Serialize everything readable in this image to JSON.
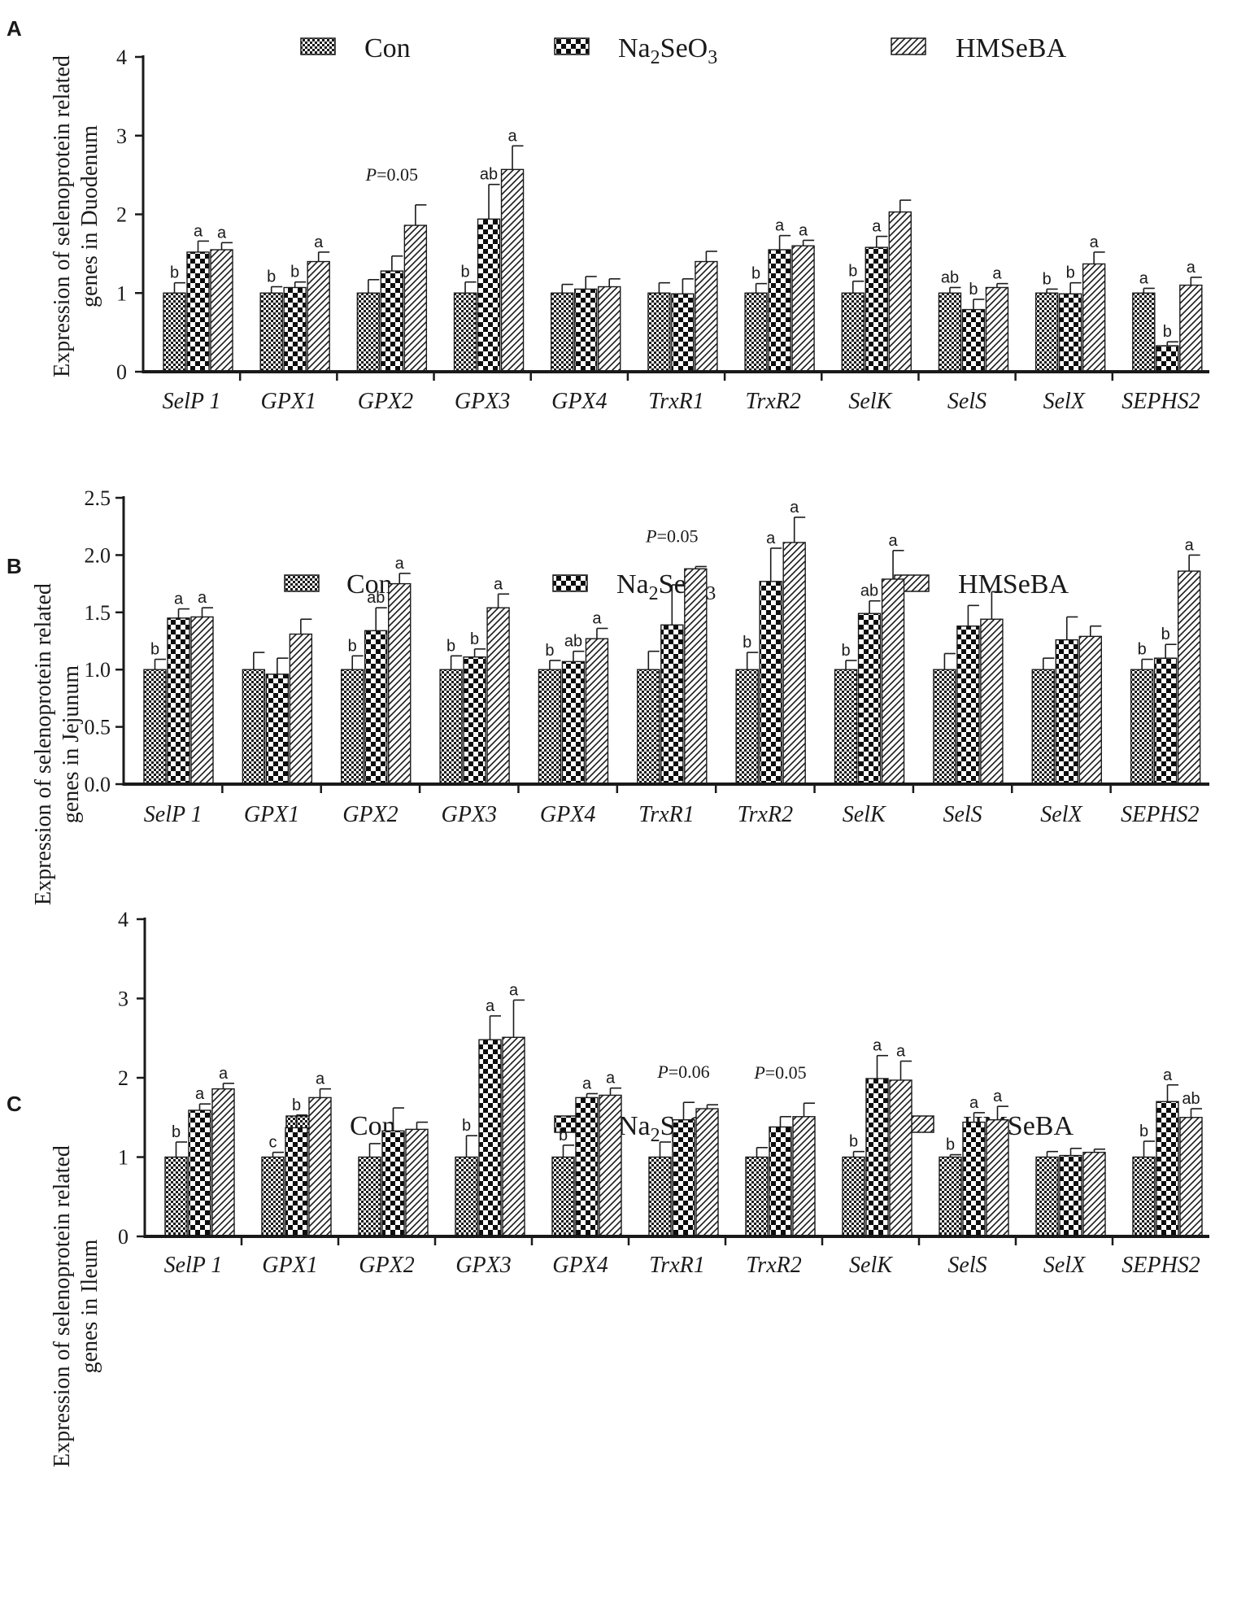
{
  "chart_data": [
    {
      "panel_label": "A",
      "type": "bar",
      "title": "",
      "xlabel": "",
      "ylabel_lines": [
        "Expression of selenoprotein related",
        "genes in Duodenum"
      ],
      "ylim": [
        0,
        4
      ],
      "yticks": [
        0,
        1,
        2,
        3,
        4
      ],
      "tick_decimals": 0,
      "legend_position": "top",
      "categories": [
        "SelP 1",
        "GPX1",
        "GPX2",
        "GPX3",
        "GPX4",
        "TrxR1",
        "TrxR2",
        "SelK",
        "SelS",
        "SelX",
        "SEPHS2"
      ],
      "series": [
        {
          "name": "Con",
          "pattern": "small-checker",
          "values": [
            1.0,
            1.0,
            1.0,
            1.0,
            1.0,
            1.0,
            1.0,
            1.0,
            1.0,
            1.0,
            1.0
          ],
          "errors": [
            0.13,
            0.08,
            0.17,
            0.14,
            0.11,
            0.13,
            0.12,
            0.15,
            0.07,
            0.05,
            0.06
          ],
          "letters": [
            "b",
            "b",
            "",
            "b",
            "",
            "",
            "b",
            "b",
            "ab",
            "b",
            "a"
          ]
        },
        {
          "name": "Na2SeO3",
          "pattern": "large-checker",
          "values": [
            1.52,
            1.07,
            1.28,
            1.94,
            1.05,
            0.99,
            1.55,
            1.58,
            0.79,
            0.99,
            0.33
          ],
          "errors": [
            0.14,
            0.07,
            0.19,
            0.44,
            0.16,
            0.19,
            0.18,
            0.14,
            0.13,
            0.14,
            0.05
          ],
          "letters": [
            "a",
            "b",
            "",
            "ab",
            "",
            "",
            "a",
            "a",
            "b",
            "b",
            "b"
          ]
        },
        {
          "name": "HMSeBA",
          "pattern": "diagonal",
          "values": [
            1.55,
            1.4,
            1.86,
            2.57,
            1.08,
            1.4,
            1.6,
            2.03,
            1.07,
            1.37,
            1.1
          ],
          "errors": [
            0.09,
            0.12,
            0.26,
            0.3,
            0.1,
            0.13,
            0.07,
            0.15,
            0.05,
            0.15,
            0.1
          ],
          "letters": [
            "a",
            "a",
            "",
            "a",
            "",
            "",
            "a",
            "",
            "a",
            "a",
            "a"
          ]
        }
      ],
      "annotations": [
        {
          "category": "GPX2",
          "p_text": "=0.05"
        }
      ]
    },
    {
      "panel_label": "B",
      "type": "bar",
      "title": "",
      "xlabel": "",
      "ylabel_lines": [
        "Expression of selenoprotein related",
        "genes in Jejunum"
      ],
      "ylim": [
        0,
        2.5
      ],
      "yticks": [
        0.0,
        0.5,
        1.0,
        1.5,
        2.0,
        2.5
      ],
      "tick_decimals": 1,
      "legend_position": "top",
      "categories": [
        "SelP 1",
        "GPX1",
        "GPX2",
        "GPX3",
        "GPX4",
        "TrxR1",
        "TrxR2",
        "SelK",
        "SelS",
        "SelX",
        "SEPHS2"
      ],
      "series": [
        {
          "name": "Con",
          "pattern": "small-checker",
          "values": [
            1.0,
            1.0,
            1.0,
            1.0,
            1.0,
            1.0,
            1.0,
            1.0,
            1.0,
            1.0,
            1.0
          ],
          "errors": [
            0.09,
            0.15,
            0.12,
            0.12,
            0.08,
            0.16,
            0.15,
            0.08,
            0.14,
            0.1,
            0.09
          ],
          "letters": [
            "b",
            "",
            "b",
            "b",
            "b",
            "",
            "b",
            "b",
            "",
            "",
            "b"
          ]
        },
        {
          "name": "Na2SeO3",
          "pattern": "large-checker",
          "values": [
            1.45,
            0.96,
            1.34,
            1.11,
            1.07,
            1.39,
            1.77,
            1.49,
            1.38,
            1.26,
            1.1
          ],
          "errors": [
            0.08,
            0.14,
            0.2,
            0.07,
            0.09,
            0.35,
            0.29,
            0.11,
            0.18,
            0.2,
            0.12
          ],
          "letters": [
            "a",
            "",
            "ab",
            "b",
            "ab",
            "",
            "a",
            "ab",
            "",
            "",
            "b"
          ]
        },
        {
          "name": "HMSeBA",
          "pattern": "diagonal",
          "values": [
            1.46,
            1.31,
            1.75,
            1.54,
            1.27,
            1.88,
            2.11,
            1.79,
            1.44,
            1.29,
            1.86
          ],
          "errors": [
            0.08,
            0.13,
            0.09,
            0.12,
            0.09,
            0.02,
            0.22,
            0.25,
            0.24,
            0.09,
            0.14
          ],
          "letters": [
            "a",
            "",
            "a",
            "a",
            "a",
            "",
            "a",
            "a",
            "",
            "",
            "a"
          ]
        }
      ],
      "annotations": [
        {
          "category": "TrxR1",
          "p_text": "=0.05"
        }
      ]
    },
    {
      "panel_label": "C",
      "type": "bar",
      "title": "",
      "xlabel": "",
      "ylabel_lines": [
        "Expression of selenoprotein related",
        "genes in Ileum"
      ],
      "ylim": [
        0,
        4
      ],
      "yticks": [
        0,
        1,
        2,
        3,
        4
      ],
      "tick_decimals": 0,
      "legend_position": "top",
      "categories": [
        "SelP 1",
        "GPX1",
        "GPX2",
        "GPX3",
        "GPX4",
        "TrxR1",
        "TrxR2",
        "SelK",
        "SelS",
        "SelX",
        "SEPHS2"
      ],
      "series": [
        {
          "name": "Con",
          "pattern": "small-checker",
          "values": [
            1.0,
            1.0,
            1.0,
            1.0,
            1.0,
            1.0,
            1.0,
            1.0,
            1.0,
            1.0,
            1.0
          ],
          "errors": [
            0.19,
            0.06,
            0.17,
            0.27,
            0.15,
            0.19,
            0.12,
            0.07,
            0.03,
            0.07,
            0.2
          ],
          "letters": [
            "b",
            "c",
            "",
            "b",
            "b",
            "",
            "",
            "b",
            "b",
            "",
            "b"
          ]
        },
        {
          "name": "Na2SeO3",
          "pattern": "large-checker",
          "values": [
            1.59,
            1.37,
            1.33,
            2.48,
            1.75,
            1.47,
            1.38,
            1.99,
            1.44,
            1.02,
            1.7
          ],
          "errors": [
            0.08,
            0.16,
            0.29,
            0.3,
            0.05,
            0.22,
            0.13,
            0.29,
            0.12,
            0.09,
            0.21
          ],
          "letters": [
            "a",
            "b",
            "",
            "a",
            "a",
            "",
            "",
            "a",
            "a",
            "",
            "a"
          ]
        },
        {
          "name": "HMSeBA",
          "pattern": "diagonal",
          "values": [
            1.86,
            1.75,
            1.35,
            2.51,
            1.78,
            1.61,
            1.51,
            1.97,
            1.47,
            1.06,
            1.5
          ],
          "errors": [
            0.07,
            0.11,
            0.09,
            0.47,
            0.09,
            0.05,
            0.17,
            0.24,
            0.17,
            0.04,
            0.11
          ],
          "letters": [
            "a",
            "a",
            "",
            "a",
            "a",
            "",
            "",
            "a",
            "a",
            "",
            "ab"
          ]
        }
      ],
      "annotations": [
        {
          "category": "TrxR1",
          "p_text": "=0.06"
        },
        {
          "category": "TrxR2",
          "p_text": "=0.05"
        }
      ]
    }
  ],
  "legend_labels": {
    "con": "Con",
    "na_main": "Na",
    "na_sub1": "2",
    "na_mid": "SeO",
    "na_sub2": "3",
    "hmseba": "HMSeBA"
  },
  "p_symbol": "P"
}
